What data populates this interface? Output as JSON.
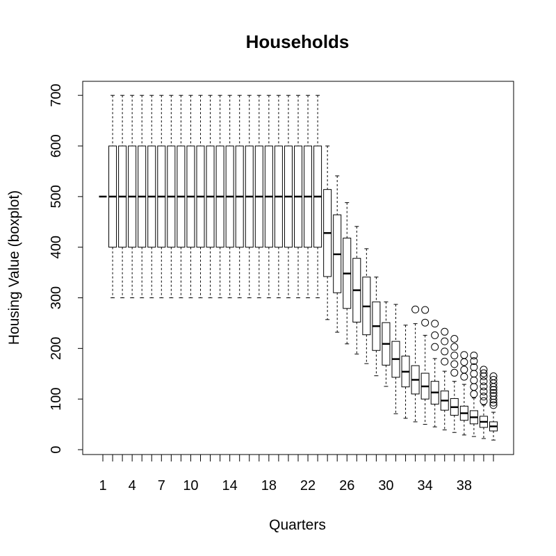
{
  "chart_data": {
    "type": "boxplot",
    "title": "Households",
    "xlabel": "Quarters",
    "ylabel": "Housing Value (boxplot)",
    "ylim": [
      0,
      700
    ],
    "yticks": [
      0,
      100,
      200,
      300,
      400,
      500,
      600,
      700
    ],
    "xtick_labels": [
      "1",
      "4",
      "7",
      "10",
      "14",
      "18",
      "22",
      "26",
      "30",
      "34",
      "38"
    ],
    "categories": [
      1,
      2,
      3,
      4,
      5,
      6,
      7,
      8,
      9,
      10,
      11,
      12,
      13,
      14,
      15,
      16,
      17,
      18,
      19,
      20,
      21,
      22,
      23,
      24,
      25,
      26,
      27,
      28,
      29,
      30,
      31,
      32,
      33,
      34,
      35,
      36,
      37,
      38,
      39,
      40,
      41
    ],
    "boxes": [
      {
        "x": 1,
        "min": 500,
        "q1": 500,
        "median": 500,
        "q3": 500,
        "max": 500,
        "outliers": []
      },
      {
        "x": 2,
        "min": 300,
        "q1": 400,
        "median": 500,
        "q3": 600,
        "max": 700,
        "outliers": []
      },
      {
        "x": 3,
        "min": 300,
        "q1": 400,
        "median": 500,
        "q3": 600,
        "max": 700,
        "outliers": []
      },
      {
        "x": 4,
        "min": 300,
        "q1": 400,
        "median": 500,
        "q3": 600,
        "max": 700,
        "outliers": []
      },
      {
        "x": 5,
        "min": 300,
        "q1": 400,
        "median": 500,
        "q3": 600,
        "max": 700,
        "outliers": []
      },
      {
        "x": 6,
        "min": 300,
        "q1": 400,
        "median": 500,
        "q3": 600,
        "max": 700,
        "outliers": []
      },
      {
        "x": 7,
        "min": 300,
        "q1": 400,
        "median": 500,
        "q3": 600,
        "max": 700,
        "outliers": []
      },
      {
        "x": 8,
        "min": 300,
        "q1": 400,
        "median": 500,
        "q3": 600,
        "max": 700,
        "outliers": []
      },
      {
        "x": 9,
        "min": 300,
        "q1": 400,
        "median": 500,
        "q3": 600,
        "max": 700,
        "outliers": []
      },
      {
        "x": 10,
        "min": 300,
        "q1": 400,
        "median": 500,
        "q3": 600,
        "max": 700,
        "outliers": []
      },
      {
        "x": 11,
        "min": 300,
        "q1": 400,
        "median": 500,
        "q3": 600,
        "max": 700,
        "outliers": []
      },
      {
        "x": 12,
        "min": 300,
        "q1": 400,
        "median": 500,
        "q3": 600,
        "max": 700,
        "outliers": []
      },
      {
        "x": 13,
        "min": 300,
        "q1": 400,
        "median": 500,
        "q3": 600,
        "max": 700,
        "outliers": []
      },
      {
        "x": 14,
        "min": 300,
        "q1": 400,
        "median": 500,
        "q3": 600,
        "max": 700,
        "outliers": []
      },
      {
        "x": 15,
        "min": 300,
        "q1": 400,
        "median": 500,
        "q3": 600,
        "max": 700,
        "outliers": []
      },
      {
        "x": 16,
        "min": 300,
        "q1": 400,
        "median": 500,
        "q3": 600,
        "max": 700,
        "outliers": []
      },
      {
        "x": 17,
        "min": 300,
        "q1": 400,
        "median": 500,
        "q3": 600,
        "max": 700,
        "outliers": []
      },
      {
        "x": 18,
        "min": 300,
        "q1": 400,
        "median": 500,
        "q3": 600,
        "max": 700,
        "outliers": []
      },
      {
        "x": 19,
        "min": 300,
        "q1": 400,
        "median": 500,
        "q3": 600,
        "max": 700,
        "outliers": []
      },
      {
        "x": 20,
        "min": 300,
        "q1": 400,
        "median": 500,
        "q3": 600,
        "max": 700,
        "outliers": []
      },
      {
        "x": 21,
        "min": 300,
        "q1": 400,
        "median": 500,
        "q3": 600,
        "max": 700,
        "outliers": []
      },
      {
        "x": 22,
        "min": 300,
        "q1": 400,
        "median": 500,
        "q3": 600,
        "max": 700,
        "outliers": []
      },
      {
        "x": 23,
        "min": 300,
        "q1": 400,
        "median": 500,
        "q3": 600,
        "max": 700,
        "outliers": []
      },
      {
        "x": 24,
        "min": 257,
        "q1": 342,
        "median": 428,
        "q3": 514,
        "max": 600,
        "outliers": []
      },
      {
        "x": 25,
        "min": 232,
        "q1": 310,
        "median": 386,
        "q3": 464,
        "max": 541,
        "outliers": []
      },
      {
        "x": 26,
        "min": 209,
        "q1": 279,
        "median": 348,
        "q3": 418,
        "max": 488,
        "outliers": []
      },
      {
        "x": 27,
        "min": 189,
        "q1": 252,
        "median": 315,
        "q3": 378,
        "max": 441,
        "outliers": []
      },
      {
        "x": 28,
        "min": 170,
        "q1": 227,
        "median": 283,
        "q3": 341,
        "max": 397,
        "outliers": []
      },
      {
        "x": 29,
        "min": 146,
        "q1": 196,
        "median": 244,
        "q3": 292,
        "max": 341,
        "outliers": []
      },
      {
        "x": 30,
        "min": 125,
        "q1": 167,
        "median": 209,
        "q3": 251,
        "max": 292,
        "outliers": []
      },
      {
        "x": 31,
        "min": 71,
        "q1": 143,
        "median": 179,
        "q3": 214,
        "max": 287,
        "outliers": []
      },
      {
        "x": 32,
        "min": 62,
        "q1": 124,
        "median": 154,
        "q3": 185,
        "max": 246,
        "outliers": []
      },
      {
        "x": 33,
        "min": 55,
        "q1": 110,
        "median": 138,
        "q3": 166,
        "max": 249,
        "outliers": [
          277
        ]
      },
      {
        "x": 34,
        "min": 50,
        "q1": 100,
        "median": 125,
        "q3": 151,
        "max": 226,
        "outliers": [
          251,
          276
        ]
      },
      {
        "x": 35,
        "min": 45,
        "q1": 90,
        "median": 113,
        "q3": 135,
        "max": 180,
        "outliers": [
          203,
          226,
          249
        ]
      },
      {
        "x": 36,
        "min": 39,
        "q1": 78,
        "median": 97,
        "q3": 116,
        "max": 155,
        "outliers": [
          174,
          194,
          214,
          233
        ]
      },
      {
        "x": 37,
        "min": 34,
        "q1": 68,
        "median": 84,
        "q3": 101,
        "max": 135,
        "outliers": [
          152,
          169,
          186,
          203,
          219
        ]
      },
      {
        "x": 38,
        "min": 29,
        "q1": 58,
        "median": 72,
        "q3": 86,
        "max": 129,
        "outliers": [
          144,
          158,
          173,
          187
        ]
      },
      {
        "x": 39,
        "min": 26,
        "q1": 51,
        "median": 64,
        "q3": 77,
        "max": 102,
        "outliers": [
          110,
          124,
          137,
          150,
          163,
          175,
          186
        ]
      },
      {
        "x": 40,
        "min": 22,
        "q1": 44,
        "median": 55,
        "q3": 66,
        "max": 88,
        "outliers": [
          96,
          105,
          115,
          125,
          135,
          145,
          151,
          158
        ]
      },
      {
        "x": 41,
        "min": 19,
        "q1": 37,
        "median": 46,
        "q3": 55,
        "max": 74,
        "outliers": [
          88,
          93,
          99,
          106,
          112,
          118,
          124,
          131,
          138,
          145
        ]
      }
    ]
  }
}
